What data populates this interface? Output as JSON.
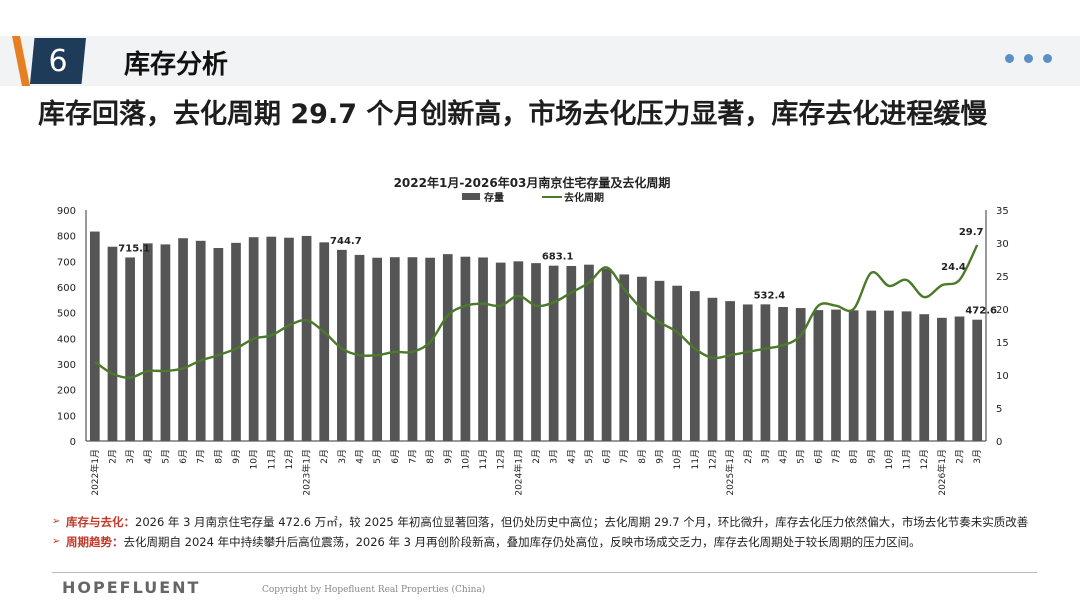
{
  "section": {
    "number": "6",
    "title": "库存分析"
  },
  "headline": "库存回落，去化周期 29.7 个月创新高，市场去化压力显著，库存去化进程缓慢",
  "chart_data": {
    "type": "bar+line",
    "title": "2022年1月-2026年03月南京住宅存量及去化周期",
    "legend": [
      "存量",
      "去化周期"
    ],
    "legend_position": "top",
    "colors": {
      "bars": "#555555",
      "line": "#4a7a2a"
    },
    "y_left": {
      "min": 0,
      "max": 900,
      "step": 100
    },
    "y_right": {
      "min": 0,
      "max": 35,
      "step": 5
    },
    "x_labels": [
      "2022年1月",
      "2月",
      "3月",
      "4月",
      "5月",
      "6月",
      "7月",
      "8月",
      "9月",
      "10月",
      "11月",
      "12月",
      "2023年1月",
      "2月",
      "3月",
      "4月",
      "5月",
      "6月",
      "7月",
      "8月",
      "9月",
      "10月",
      "11月",
      "12月",
      "2024年1月",
      "2月",
      "3月",
      "4月",
      "5月",
      "6月",
      "7月",
      "8月",
      "9月",
      "10月",
      "11月",
      "12月",
      "2025年1月",
      "2月",
      "3月",
      "4月",
      "5月",
      "6月",
      "7月",
      "8月",
      "9月",
      "10月",
      "11月",
      "12月",
      "2026年1月",
      "2月",
      "3月"
    ],
    "inventory": [
      816,
      757,
      715.1,
      770,
      766,
      790,
      780,
      752,
      772,
      794,
      796,
      792,
      799,
      774,
      744.7,
      725,
      714,
      716,
      716,
      714,
      728,
      718,
      715,
      695,
      700,
      693,
      683.1,
      682,
      687,
      671,
      649,
      640,
      624,
      605,
      584,
      558,
      545,
      532,
      532.4,
      522,
      518,
      510,
      512,
      509,
      508,
      508,
      505,
      494,
      480,
      485,
      472.6
    ],
    "cycle": [
      12.0,
      10.2,
      9.6,
      10.6,
      10.6,
      11.0,
      12.2,
      13.0,
      14.0,
      15.5,
      16.0,
      17.5,
      18.3,
      16.5,
      14.0,
      13.0,
      13.0,
      13.5,
      13.5,
      15.0,
      19.0,
      20.5,
      20.8,
      20.5,
      22.0,
      20.5,
      21.0,
      22.5,
      24.0,
      26.3,
      23.0,
      20.0,
      18.0,
      16.5,
      14.0,
      12.6,
      13.0,
      13.5,
      14.0,
      14.5,
      16.0,
      20.5,
      20.5,
      20.0,
      25.5,
      23.5,
      24.4,
      21.8,
      23.6,
      24.4,
      29.7
    ],
    "bar_labels": [
      {
        "index": 2,
        "text": "715.1"
      },
      {
        "index": 14,
        "text": "744.7"
      },
      {
        "index": 26,
        "text": "683.1"
      },
      {
        "index": 38,
        "text": "532.4"
      },
      {
        "index": 50,
        "text": "472.6"
      }
    ],
    "line_labels": [
      {
        "index": 49,
        "text": "24.4"
      },
      {
        "index": 50,
        "text": "29.7"
      }
    ]
  },
  "notes": [
    {
      "label": "库存与去化：",
      "text": "2026 年 3 月南京住宅存量 472.6 万㎡，较 2025 年初高位显著回落，但仍处历史中高位；去化周期 29.7 个月，环比微升，库存去化压力依然偏大，市场去化节奏未实质改善"
    },
    {
      "label": "周期趋势：",
      "text": "去化周期自 2024 年中持续攀升后高位震荡，2026 年 3 月再创阶段新高，叠加库存仍处高位，反映市场成交乏力，库存去化周期处于较长周期的压力区间。"
    }
  ],
  "footer": {
    "brand": "HOPEFLUENT",
    "copyright": "Copyright by Hopefluent Real Properties (China)"
  }
}
